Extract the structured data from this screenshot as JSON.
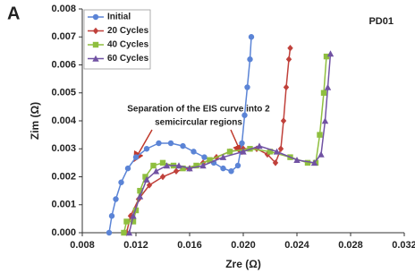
{
  "chart_data": {
    "type": "line",
    "panel_label": "A",
    "sample_label": "PD01",
    "x_label": "Zre (Ω)",
    "y_label": "Zim (Ω)",
    "annotation": [
      "Separation of the EIS curve into 2",
      "semicircular regions"
    ],
    "xlim": [
      0.008,
      0.032
    ],
    "xticks": [
      0.008,
      0.012,
      0.016,
      {
        "value": 0.02,
        "label": "0.020"
      },
      0.024,
      0.028,
      0.032
    ],
    "ylim": [
      0,
      0.008
    ],
    "yticks": [
      {
        "value": 0,
        "label": "0.000"
      },
      {
        "value": 0.001,
        "label": "0.001"
      },
      {
        "value": 0.002,
        "label": "0.002"
      },
      {
        "value": 0.003,
        "label": "0.003"
      },
      {
        "value": 0.004,
        "label": "0.004"
      },
      {
        "value": 0.005,
        "label": "0.005"
      },
      {
        "value": 0.006,
        "label": "0.006"
      },
      {
        "value": 0.007,
        "label": "0.007"
      },
      {
        "value": 0.008,
        "label": "0.008"
      }
    ],
    "legend": "upper left",
    "series": [
      {
        "name": "Initial",
        "color": "#5b84d6",
        "marker": "circle",
        "x": [
          0.01,
          0.0102,
          0.0105,
          0.0109,
          0.0114,
          0.012,
          0.0128,
          0.0137,
          0.0146,
          0.0155,
          0.0163,
          0.0171,
          0.0178,
          0.0185,
          0.0191,
          0.0196,
          0.0199,
          0.0201,
          0.0203,
          0.0205,
          0.0206
        ],
        "values": [
          0.0,
          0.0006,
          0.0012,
          0.0018,
          0.0023,
          0.0027,
          0.003,
          0.0032,
          0.0032,
          0.0031,
          0.0029,
          0.0027,
          0.0025,
          0.0023,
          0.0022,
          0.0024,
          0.0032,
          0.0042,
          0.0052,
          0.0062,
          0.007
        ]
      },
      {
        "name": "20 Cycles",
        "color": "#c0413b",
        "marker": "diamond",
        "x": [
          0.0113,
          0.0116,
          0.0122,
          0.013,
          0.014,
          0.015,
          0.016,
          0.017,
          0.018,
          0.019,
          0.02,
          0.021,
          0.0218,
          0.0224,
          0.0228,
          0.023,
          0.0232,
          0.0234,
          0.0235
        ],
        "values": [
          0.0,
          0.0006,
          0.0012,
          0.0017,
          0.002,
          0.0022,
          0.0023,
          0.0025,
          0.0027,
          0.0029,
          0.003,
          0.003,
          0.0028,
          0.0025,
          0.003,
          0.004,
          0.0052,
          0.0062,
          0.0066
        ]
      },
      {
        "name": "40 Cycles",
        "color": "#8fbf3f",
        "marker": "square",
        "x": [
          0.0111,
          0.0113,
          0.0118,
          0.012,
          0.0123,
          0.0127,
          0.0133,
          0.014,
          0.0148,
          0.0155,
          0.0165,
          0.0175,
          0.019,
          0.0205,
          0.022,
          0.0235,
          0.0248,
          0.0254,
          0.0257,
          0.026,
          0.0262
        ],
        "values": [
          0.0,
          0.0004,
          0.0004,
          0.0008,
          0.0015,
          0.002,
          0.0024,
          0.0025,
          0.0024,
          0.0023,
          0.0024,
          0.0026,
          0.0029,
          0.003,
          0.0029,
          0.0027,
          0.0025,
          0.0025,
          0.0035,
          0.005,
          0.0063
        ]
      },
      {
        "name": "60 Cycles",
        "color": "#7152a3",
        "marker": "triangle",
        "x": [
          0.0115,
          0.0118,
          0.0123,
          0.0128,
          0.0135,
          0.0143,
          0.0152,
          0.016,
          0.017,
          0.0185,
          0.02,
          0.0212,
          0.0225,
          0.024,
          0.0253,
          0.0258,
          0.0261,
          0.0263,
          0.0265
        ],
        "values": [
          0.0,
          0.0006,
          0.0013,
          0.0019,
          0.0022,
          0.0024,
          0.0024,
          0.0023,
          0.0024,
          0.0027,
          0.0029,
          0.0031,
          0.0029,
          0.0026,
          0.0025,
          0.0028,
          0.004,
          0.0052,
          0.0064
        ]
      }
    ]
  }
}
